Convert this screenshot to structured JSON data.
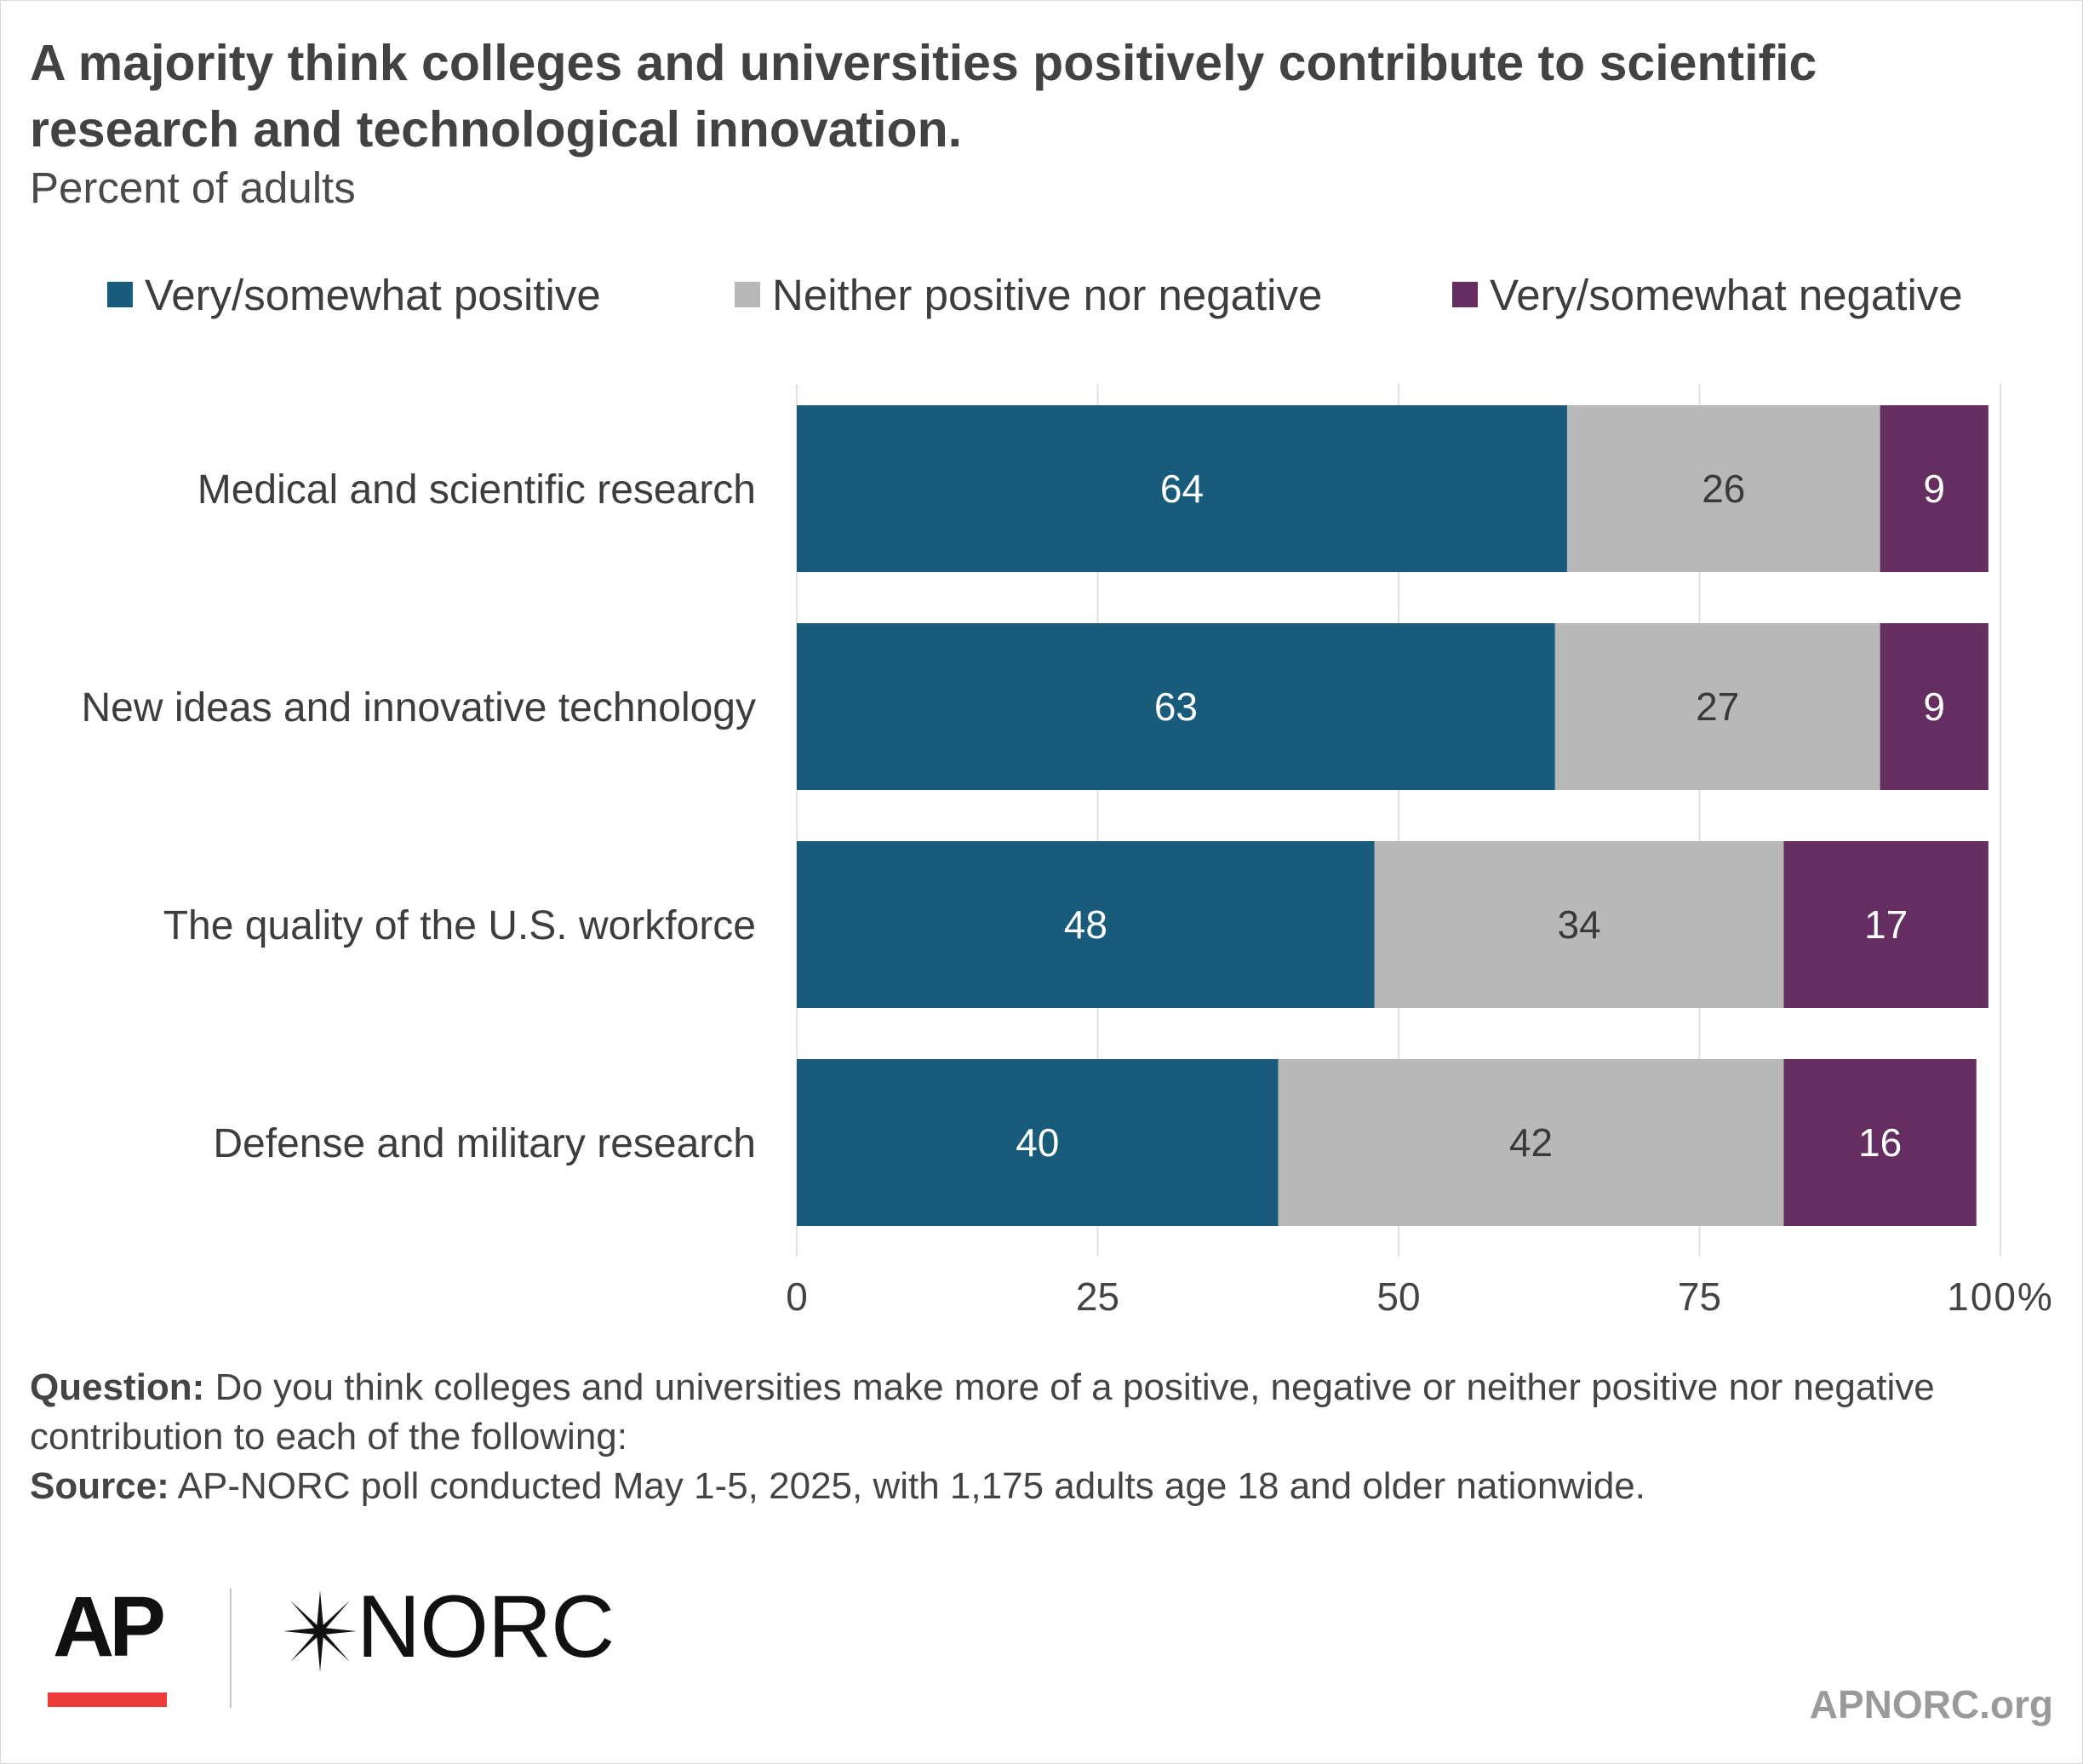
{
  "title": "A majority think colleges and universities positively contribute to scientific research and technological innovation.",
  "subtitle": "Percent of adults",
  "colors": {
    "positive": "#185b7a",
    "neither": "#b8b8b8",
    "negative": "#652d60"
  },
  "chart_data": {
    "type": "bar",
    "orientation": "horizontal",
    "stacked": true,
    "categories": [
      "Medical and scientific research",
      "New ideas and innovative technology",
      "The quality of the U.S. workforce",
      "Defense and military research"
    ],
    "series": [
      {
        "name": "Very/somewhat positive",
        "values": [
          64,
          63,
          48,
          40
        ]
      },
      {
        "name": "Neither positive nor negative",
        "values": [
          26,
          27,
          34,
          42
        ]
      },
      {
        "name": "Very/somewhat negative",
        "values": [
          9,
          9,
          17,
          16
        ]
      }
    ],
    "xlim": [
      0,
      100
    ],
    "xticks": [
      "0",
      "25",
      "50",
      "75",
      "100%"
    ],
    "grid": true,
    "legend": "top"
  },
  "footer": {
    "question_label": "Question:",
    "question_text": "Do you think colleges and universities make more of a  positive, negative or neither positive nor negative contribution to each of the following:",
    "source_label": "Source:",
    "source_text": "AP-NORC poll conducted May 1-5, 2025, with 1,175 adults age 18 and older nationwide."
  },
  "logos": {
    "ap": "AP",
    "norc": "NORC"
  },
  "site": "APNORC.org"
}
